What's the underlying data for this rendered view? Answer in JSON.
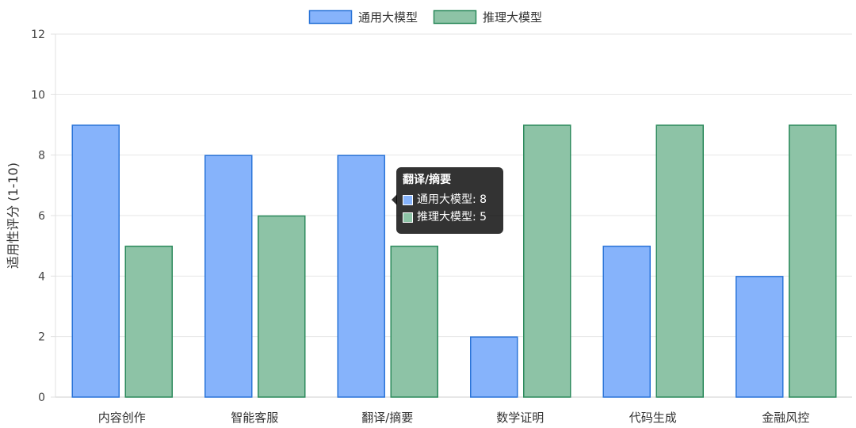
{
  "chart_data": {
    "type": "bar",
    "categories": [
      "内容创作",
      "智能客服",
      "翻译/摘要",
      "数学证明",
      "代码生成",
      "金融风控"
    ],
    "series": [
      {
        "name": "通用大模型",
        "values": [
          9,
          8,
          8,
          2,
          5,
          4
        ],
        "fill": "#86b3fb",
        "stroke": "#2a74d8"
      },
      {
        "name": "推理大模型",
        "values": [
          5,
          6,
          5,
          9,
          9,
          9
        ],
        "fill": "#8dc3a6",
        "stroke": "#2c8a5c"
      }
    ],
    "ylabel": "适用性评分 (1-10)",
    "ylim": [
      0,
      12
    ],
    "yticks": [
      "0",
      "2",
      "4",
      "6",
      "8",
      "10",
      "12"
    ],
    "grid": true,
    "legend_position": "top"
  },
  "tooltip": {
    "title": "翻译/摘要",
    "rows": [
      {
        "text": "通用大模型: 8"
      },
      {
        "text": "推理大模型: 5"
      }
    ]
  }
}
